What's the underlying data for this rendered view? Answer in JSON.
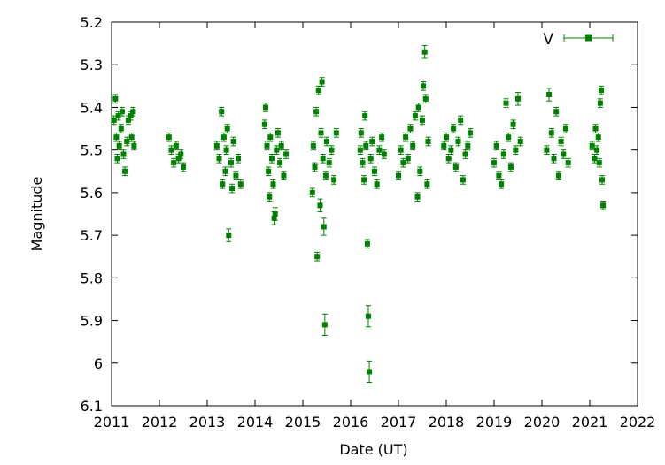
{
  "chart_data": {
    "type": "scatter",
    "xlabel": "Date (UT)",
    "ylabel": "Magnitude",
    "xlim": [
      2011,
      2022
    ],
    "ylim": [
      5.2,
      6.1
    ],
    "y_inverted": true,
    "x_ticks": [
      "2011",
      "2012",
      "2013",
      "2014",
      "2015",
      "2016",
      "2017",
      "2018",
      "2019",
      "2020",
      "2021",
      "2022"
    ],
    "y_ticks": [
      "5.2",
      "5.3",
      "5.4",
      "5.5",
      "5.6",
      "5.7",
      "5.8",
      "5.9",
      "6",
      "6.1"
    ],
    "legend_position": "top-right",
    "marker": "filled-square-with-error-bars",
    "color": "#008000",
    "series": [
      {
        "name": "V",
        "points": [
          [
            2011.05,
            5.43,
            0.01
          ],
          [
            2011.08,
            5.38,
            0.01
          ],
          [
            2011.1,
            5.47,
            0.01
          ],
          [
            2011.12,
            5.52,
            0.01
          ],
          [
            2011.14,
            5.42,
            0.01
          ],
          [
            2011.16,
            5.49,
            0.01
          ],
          [
            2011.2,
            5.45,
            0.01
          ],
          [
            2011.22,
            5.41,
            0.01
          ],
          [
            2011.25,
            5.51,
            0.01
          ],
          [
            2011.28,
            5.55,
            0.01
          ],
          [
            2011.32,
            5.48,
            0.01
          ],
          [
            2011.35,
            5.43,
            0.01
          ],
          [
            2011.4,
            5.42,
            0.01
          ],
          [
            2011.42,
            5.47,
            0.01
          ],
          [
            2011.45,
            5.41,
            0.01
          ],
          [
            2011.47,
            5.49,
            0.01
          ],
          [
            2012.2,
            5.47,
            0.01
          ],
          [
            2012.25,
            5.5,
            0.01
          ],
          [
            2012.3,
            5.53,
            0.01
          ],
          [
            2012.35,
            5.49,
            0.01
          ],
          [
            2012.4,
            5.52,
            0.01
          ],
          [
            2012.45,
            5.51,
            0.01
          ],
          [
            2012.5,
            5.54,
            0.01
          ],
          [
            2013.2,
            5.49,
            0.01
          ],
          [
            2013.25,
            5.52,
            0.01
          ],
          [
            2013.3,
            5.41,
            0.01
          ],
          [
            2013.32,
            5.58,
            0.01
          ],
          [
            2013.35,
            5.47,
            0.01
          ],
          [
            2013.38,
            5.55,
            0.01
          ],
          [
            2013.4,
            5.5,
            0.01
          ],
          [
            2013.42,
            5.45,
            0.01
          ],
          [
            2013.45,
            5.7,
            0.015
          ],
          [
            2013.5,
            5.53,
            0.01
          ],
          [
            2013.52,
            5.59,
            0.01
          ],
          [
            2013.55,
            5.48,
            0.01
          ],
          [
            2013.6,
            5.56,
            0.01
          ],
          [
            2013.65,
            5.52,
            0.01
          ],
          [
            2013.7,
            5.58,
            0.01
          ],
          [
            2014.2,
            5.44,
            0.01
          ],
          [
            2014.22,
            5.4,
            0.01
          ],
          [
            2014.25,
            5.49,
            0.01
          ],
          [
            2014.28,
            5.55,
            0.01
          ],
          [
            2014.3,
            5.61,
            0.01
          ],
          [
            2014.32,
            5.47,
            0.01
          ],
          [
            2014.35,
            5.52,
            0.01
          ],
          [
            2014.38,
            5.58,
            0.01
          ],
          [
            2014.4,
            5.66,
            0.015
          ],
          [
            2014.42,
            5.65,
            0.015
          ],
          [
            2014.45,
            5.5,
            0.01
          ],
          [
            2014.48,
            5.46,
            0.01
          ],
          [
            2014.52,
            5.53,
            0.01
          ],
          [
            2014.55,
            5.49,
            0.01
          ],
          [
            2014.6,
            5.56,
            0.01
          ],
          [
            2014.65,
            5.51,
            0.01
          ],
          [
            2015.2,
            5.6,
            0.01
          ],
          [
            2015.22,
            5.49,
            0.01
          ],
          [
            2015.25,
            5.54,
            0.01
          ],
          [
            2015.28,
            5.41,
            0.01
          ],
          [
            2015.3,
            5.75,
            0.01
          ],
          [
            2015.33,
            5.36,
            0.01
          ],
          [
            2015.36,
            5.63,
            0.015
          ],
          [
            2015.38,
            5.46,
            0.01
          ],
          [
            2015.4,
            5.34,
            0.01
          ],
          [
            2015.42,
            5.52,
            0.01
          ],
          [
            2015.44,
            5.68,
            0.02
          ],
          [
            2015.46,
            5.91,
            0.025
          ],
          [
            2015.48,
            5.56,
            0.01
          ],
          [
            2015.5,
            5.48,
            0.01
          ],
          [
            2015.55,
            5.53,
            0.01
          ],
          [
            2015.6,
            5.5,
            0.01
          ],
          [
            2015.65,
            5.57,
            0.01
          ],
          [
            2015.7,
            5.46,
            0.01
          ],
          [
            2016.2,
            5.5,
            0.01
          ],
          [
            2016.22,
            5.46,
            0.01
          ],
          [
            2016.25,
            5.53,
            0.01
          ],
          [
            2016.28,
            5.57,
            0.01
          ],
          [
            2016.3,
            5.42,
            0.01
          ],
          [
            2016.32,
            5.49,
            0.01
          ],
          [
            2016.35,
            5.72,
            0.01
          ],
          [
            2016.37,
            5.89,
            0.025
          ],
          [
            2016.39,
            6.02,
            0.025
          ],
          [
            2016.42,
            5.52,
            0.01
          ],
          [
            2016.45,
            5.48,
            0.01
          ],
          [
            2016.5,
            5.55,
            0.01
          ],
          [
            2016.55,
            5.58,
            0.01
          ],
          [
            2016.6,
            5.5,
            0.01
          ],
          [
            2016.65,
            5.47,
            0.01
          ],
          [
            2016.7,
            5.51,
            0.01
          ],
          [
            2017.0,
            5.56,
            0.01
          ],
          [
            2017.05,
            5.5,
            0.01
          ],
          [
            2017.1,
            5.53,
            0.01
          ],
          [
            2017.15,
            5.47,
            0.01
          ],
          [
            2017.2,
            5.52,
            0.01
          ],
          [
            2017.25,
            5.45,
            0.01
          ],
          [
            2017.3,
            5.49,
            0.01
          ],
          [
            2017.35,
            5.42,
            0.01
          ],
          [
            2017.4,
            5.61,
            0.01
          ],
          [
            2017.42,
            5.4,
            0.01
          ],
          [
            2017.45,
            5.55,
            0.01
          ],
          [
            2017.5,
            5.43,
            0.01
          ],
          [
            2017.52,
            5.35,
            0.01
          ],
          [
            2017.55,
            5.27,
            0.015
          ],
          [
            2017.57,
            5.38,
            0.01
          ],
          [
            2017.6,
            5.58,
            0.01
          ],
          [
            2017.62,
            5.48,
            0.01
          ],
          [
            2017.95,
            5.49,
            0.01
          ],
          [
            2018.0,
            5.47,
            0.01
          ],
          [
            2018.05,
            5.52,
            0.01
          ],
          [
            2018.1,
            5.5,
            0.01
          ],
          [
            2018.15,
            5.45,
            0.01
          ],
          [
            2018.2,
            5.54,
            0.01
          ],
          [
            2018.25,
            5.48,
            0.01
          ],
          [
            2018.3,
            5.43,
            0.01
          ],
          [
            2018.35,
            5.57,
            0.01
          ],
          [
            2018.4,
            5.51,
            0.01
          ],
          [
            2018.45,
            5.49,
            0.01
          ],
          [
            2018.5,
            5.46,
            0.01
          ],
          [
            2019.0,
            5.53,
            0.01
          ],
          [
            2019.05,
            5.49,
            0.01
          ],
          [
            2019.1,
            5.56,
            0.01
          ],
          [
            2019.15,
            5.58,
            0.01
          ],
          [
            2019.2,
            5.51,
            0.01
          ],
          [
            2019.25,
            5.39,
            0.01
          ],
          [
            2019.3,
            5.47,
            0.01
          ],
          [
            2019.35,
            5.54,
            0.01
          ],
          [
            2019.4,
            5.44,
            0.01
          ],
          [
            2019.45,
            5.5,
            0.01
          ],
          [
            2019.5,
            5.38,
            0.015
          ],
          [
            2019.55,
            5.48,
            0.01
          ],
          [
            2020.1,
            5.5,
            0.01
          ],
          [
            2020.15,
            5.37,
            0.015
          ],
          [
            2020.2,
            5.46,
            0.01
          ],
          [
            2020.25,
            5.52,
            0.01
          ],
          [
            2020.3,
            5.41,
            0.01
          ],
          [
            2020.35,
            5.56,
            0.01
          ],
          [
            2020.4,
            5.48,
            0.01
          ],
          [
            2020.45,
            5.51,
            0.01
          ],
          [
            2020.5,
            5.45,
            0.01
          ],
          [
            2020.55,
            5.53,
            0.01
          ],
          [
            2021.05,
            5.49,
            0.01
          ],
          [
            2021.1,
            5.52,
            0.01
          ],
          [
            2021.12,
            5.45,
            0.01
          ],
          [
            2021.15,
            5.5,
            0.01
          ],
          [
            2021.18,
            5.47,
            0.01
          ],
          [
            2021.2,
            5.53,
            0.01
          ],
          [
            2021.22,
            5.39,
            0.01
          ],
          [
            2021.24,
            5.36,
            0.01
          ],
          [
            2021.26,
            5.57,
            0.01
          ],
          [
            2021.28,
            5.63,
            0.01
          ]
        ]
      }
    ]
  }
}
